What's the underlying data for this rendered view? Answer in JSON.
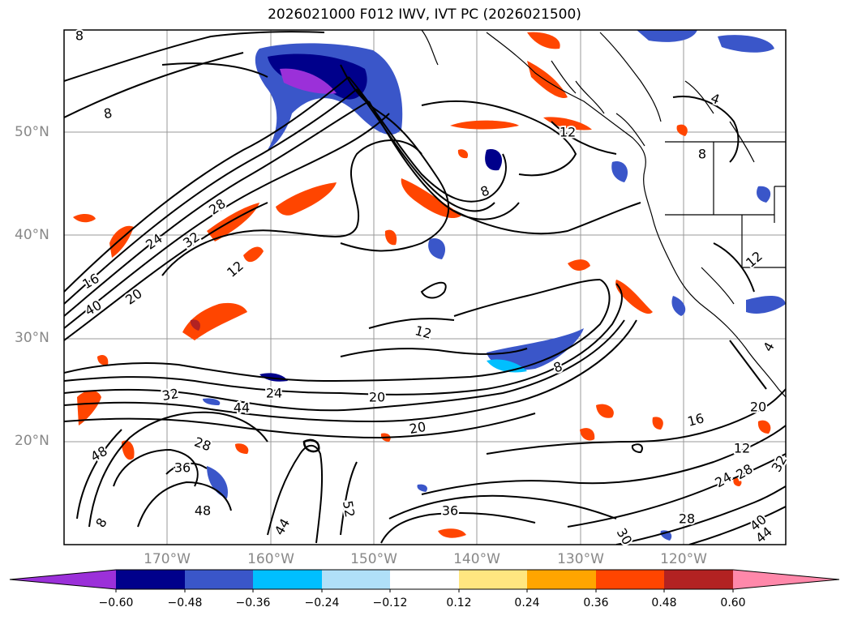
{
  "title": "2026021000 F012 IWV, IVT PC (2026021500)",
  "lat_labels": [
    "50°N",
    "40°N",
    "30°N",
    "20°N"
  ],
  "lon_labels": [
    "170°W",
    "160°W",
    "150°W",
    "140°W",
    "130°W",
    "120°W"
  ],
  "colorbar": {
    "ticks": [
      "−0.60",
      "−0.48",
      "−0.36",
      "−0.24",
      "−0.12",
      "0.12",
      "0.24",
      "0.36",
      "0.48",
      "0.60"
    ],
    "colors": [
      "#9b30d9",
      "#00008b",
      "#3a56c9",
      "#00bfff",
      "#b0e0f8",
      "#ffffff",
      "#ffe680",
      "#ffa500",
      "#ff4500",
      "#b22222",
      "#ff88aa"
    ]
  },
  "contour_labels": [
    "8",
    "8",
    "28",
    "24",
    "32",
    "16",
    "40",
    "20",
    "12",
    "12",
    "8",
    "12",
    "8",
    "4",
    "8",
    "12",
    "20",
    "32",
    "24",
    "20",
    "44",
    "28",
    "48",
    "36",
    "48",
    "44",
    "52",
    "36",
    "28",
    "40",
    "44",
    "30",
    "28",
    "24",
    "16",
    "12",
    "20",
    "32",
    "4",
    "8"
  ]
}
